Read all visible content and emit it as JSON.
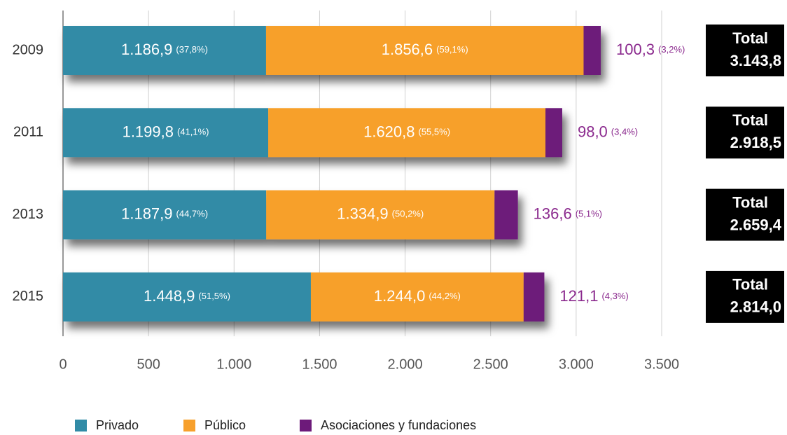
{
  "chart_data": {
    "type": "stacked-bar-horizontal",
    "categories": [
      "2009",
      "2011",
      "2013",
      "2015"
    ],
    "series": [
      {
        "name": "Privado",
        "color": "#318ba6",
        "values": [
          1186.9,
          1199.8,
          1187.9,
          1448.9
        ],
        "value_labels": [
          "1.186,9",
          "1.199,8",
          "1.187,9",
          "1.448,9"
        ],
        "share_labels": [
          "(37,8%)",
          "(41,1%)",
          "(44,7%)",
          "(51,5%)"
        ]
      },
      {
        "name": "Público",
        "color": "#f7a02c",
        "values": [
          1856.6,
          1620.8,
          1334.9,
          1244.0
        ],
        "value_labels": [
          "1.856,6",
          "1.620,8",
          "1.334,9",
          "1.244,0"
        ],
        "share_labels": [
          "(59,1%)",
          "(55,5%)",
          "(50,2%)",
          "(44,2%)"
        ]
      },
      {
        "name": "Asociaciones y fundaciones",
        "color": "#6d1a7a",
        "values": [
          100.3,
          98.0,
          136.6,
          121.1
        ],
        "value_labels": [
          "100,3",
          "98,0",
          "136,6",
          "121,1"
        ],
        "share_labels": [
          "(3,2%)",
          "(3,4%)",
          "(5,1%)",
          "(4,3%)"
        ]
      }
    ],
    "total_title": "Total",
    "totals": [
      3143.8,
      2918.5,
      2659.4,
      2814.0
    ],
    "total_labels": [
      "3.143,8",
      "2.918,5",
      "2.659,4",
      "2.814,0"
    ],
    "xlim": [
      0,
      3500
    ],
    "xticks": [
      0,
      500,
      {
        "value": 1000,
        "label": "1.000"
      },
      {
        "value": 1500,
        "label": "1.500"
      },
      {
        "value": 2000,
        "label": "2.000"
      },
      {
        "value": 2500,
        "label": "2.500"
      },
      {
        "value": 3000,
        "label": "3.000"
      },
      {
        "value": 3500,
        "label": "3.500"
      }
    ],
    "grid": true
  }
}
